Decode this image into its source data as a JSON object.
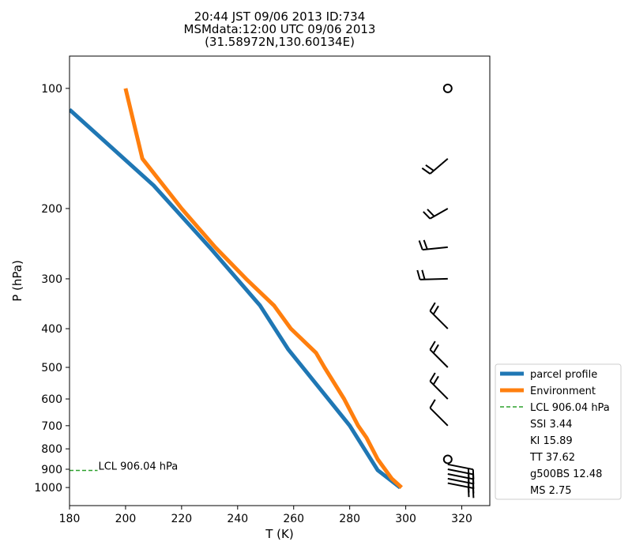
{
  "chart_data": {
    "type": "line",
    "title_lines": [
      "20:44 JST 09/06 2013  ID:734",
      "MSMdata:12:00 UTC 09/06 2013",
      "(31.58972N,130.60134E)"
    ],
    "xlabel": "T (K)",
    "ylabel": "P (hPa)",
    "xlim": [
      180,
      330
    ],
    "ylim": [
      1110,
      83
    ],
    "y_scale": "log",
    "x_ticks": [
      180,
      200,
      220,
      240,
      260,
      280,
      300,
      320
    ],
    "y_ticks": [
      100,
      200,
      300,
      400,
      500,
      600,
      700,
      800,
      900,
      1000
    ],
    "grid": false,
    "legend_position": "lower-right",
    "series": [
      {
        "name": "parcel profile",
        "color": "#1f77b4",
        "points": [
          [
            298,
            1000
          ],
          [
            290,
            905
          ],
          [
            280,
            700
          ],
          [
            268,
            550
          ],
          [
            258,
            450
          ],
          [
            248,
            350
          ],
          [
            230,
            250
          ],
          [
            210,
            175
          ],
          [
            180,
            113
          ]
        ]
      },
      {
        "name": "Environment",
        "color": "#ff7f0e",
        "points": [
          [
            298.5,
            1000
          ],
          [
            295,
            950
          ],
          [
            290,
            850
          ],
          [
            286,
            750
          ],
          [
            283,
            700
          ],
          [
            278,
            600
          ],
          [
            271,
            500
          ],
          [
            268,
            460
          ],
          [
            259,
            400
          ],
          [
            253,
            350
          ],
          [
            243,
            300
          ],
          [
            232,
            250
          ],
          [
            220,
            200
          ],
          [
            206,
            150
          ],
          [
            200,
            100
          ]
        ]
      },
      {
        "name": "LCL 906.04 hPa",
        "color": "#2ca02c",
        "style": "dashed",
        "points": [
          [
            180,
            906.04
          ],
          [
            190,
            906.04
          ]
        ]
      }
    ],
    "legend_extra": [
      "SSI 3.44",
      "KI 15.89",
      "TT 37.62",
      "g500BS 12.48",
      "MS 2.75"
    ],
    "annotations": [
      {
        "text": "LCL 906.04 hPa",
        "x": 190,
        "y": 906.04
      }
    ],
    "wind_barbs": {
      "x": 315,
      "levels": [
        {
          "p": 100,
          "calm": true
        },
        {
          "p": 150,
          "dx": -7,
          "dy": 6,
          "flags": 2
        },
        {
          "p": 200,
          "dx": -7,
          "dy": 4,
          "flags": 2
        },
        {
          "p": 250,
          "dx": -10,
          "dy": 1,
          "flags": 2
        },
        {
          "p": 300,
          "dx": -11,
          "dy": 0.3,
          "flags": 2
        },
        {
          "p": 400,
          "dx": -7,
          "dy": -7,
          "flags": 2
        },
        {
          "p": 500,
          "dx": -7,
          "dy": -7,
          "flags": 2
        },
        {
          "p": 600,
          "dx": -7,
          "dy": -7,
          "flags": 2
        },
        {
          "p": 700,
          "dx": -7,
          "dy": -7,
          "flags": 1
        },
        {
          "p": 850,
          "calm": true
        },
        {
          "p": 875,
          "dx": 10,
          "dy": 2,
          "flags": 2
        },
        {
          "p": 900,
          "dx": 10,
          "dy": 2,
          "flags": 2
        },
        {
          "p": 925,
          "dx": 10,
          "dy": 2,
          "flags": 2
        },
        {
          "p": 950,
          "dx": 10,
          "dy": 2,
          "flags": 2
        },
        {
          "p": 975,
          "dx": 10,
          "dy": 2,
          "flags": 2
        }
      ]
    }
  }
}
